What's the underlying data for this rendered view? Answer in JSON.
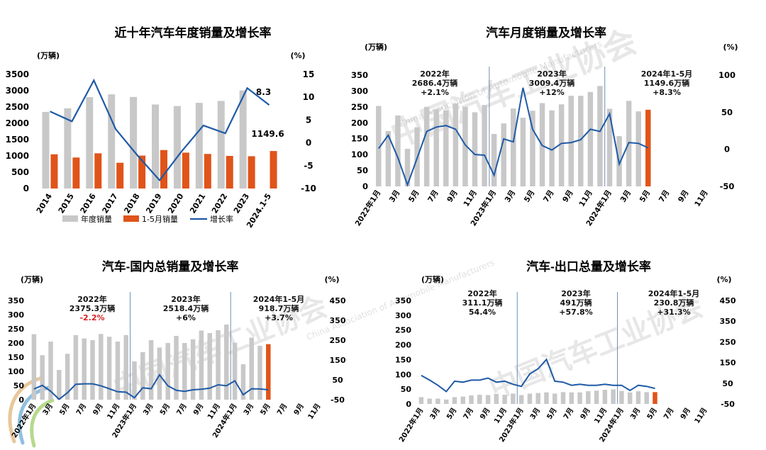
{
  "watermark": {
    "org_cn": "中国汽车工业协会",
    "org_en": "China Association of Automobile Manufacturers",
    "logo_text": "CAAM"
  },
  "colors": {
    "gray_bar": "#c8c8c8",
    "orange_bar": "#e0541a",
    "line": "#1f5aa6",
    "annot_red": "#d82020"
  },
  "chart_data": [
    {
      "id": "annual",
      "type": "bar",
      "title": "近十年汽车年度销量及增长率",
      "y_unit_left": "(万辆)",
      "y_unit_right": "(%)",
      "ylim_left": [
        0,
        3500
      ],
      "yticks_left": [
        "0",
        "500",
        "1000",
        "1500",
        "2000",
        "2500",
        "3000",
        "3500"
      ],
      "ylim_right": [
        -10,
        15
      ],
      "yticks_right": [
        "-10",
        "-5",
        "0",
        "5",
        "10",
        "15"
      ],
      "categories": [
        "2014",
        "2015",
        "2016",
        "2017",
        "2018",
        "2019",
        "2020",
        "2021",
        "2022",
        "2023",
        "2024.1-5"
      ],
      "series": [
        {
          "name": "年度销量",
          "kind": "bar",
          "axis": "left",
          "values": [
            2349,
            2460,
            2803,
            2888,
            2808,
            2577,
            2531,
            2628,
            2686,
            3009,
            null
          ]
        },
        {
          "name": "1-5月销量",
          "kind": "bar",
          "axis": "left",
          "values": [
            1050,
            950,
            1080,
            790,
            1010,
            1180,
            1100,
            1060,
            1000,
            990,
            1149.6
          ]
        },
        {
          "name": "增长率",
          "kind": "line",
          "axis": "right",
          "values": [
            6.9,
            4.7,
            13.7,
            3.0,
            -2.8,
            -8.2,
            -1.9,
            3.8,
            2.1,
            12,
            8.3
          ]
        }
      ],
      "data_labels": [
        {
          "text": "8.3"
        },
        {
          "text": "1149.6"
        }
      ],
      "legend": [
        "年度销量",
        "1-5月销量",
        "增长率"
      ],
      "legend_position": "bottom",
      "grid": false
    },
    {
      "id": "monthly",
      "type": "bar",
      "title": "汽车月度销量及增长率",
      "y_unit_left": "(万辆)",
      "y_unit_right": "(%)",
      "ylim_left": [
        0,
        350
      ],
      "yticks_left": [
        "0",
        "50",
        "100",
        "150",
        "200",
        "250",
        "300",
        "350"
      ],
      "ylim_right": [
        -50,
        100
      ],
      "yticks_right": [
        "-50",
        "0",
        "50",
        "100"
      ],
      "xticks": [
        "2022年1月",
        "3月",
        "5月",
        "7月",
        "9月",
        "11月",
        "2023年1月",
        "3月",
        "5月",
        "7月",
        "9月",
        "11月",
        "2024年1月",
        "3月",
        "5月",
        "7月",
        "9月",
        "11月"
      ],
      "slots": 35,
      "bars": [
        253,
        174,
        223,
        118,
        186,
        250,
        242,
        239,
        261,
        250,
        233,
        256,
        165,
        198,
        245,
        216,
        238,
        262,
        239,
        258,
        285,
        285,
        297,
        316,
        244,
        158,
        269,
        236,
        241
      ],
      "highlight_last": true,
      "growth": [
        1,
        19,
        -11,
        -48,
        -12,
        24,
        30,
        32,
        27,
        6,
        -7,
        -8,
        -35,
        14,
        10,
        83,
        27,
        5,
        -1,
        8,
        9,
        13,
        27,
        24,
        48,
        -20,
        9,
        8,
        2
      ],
      "dividers_at": [
        12,
        24
      ],
      "annotations": [
        {
          "lines": [
            "2022年",
            "2686.4万辆",
            "+2.1%"
          ],
          "colors": [
            "#111",
            "#111",
            "#111"
          ]
        },
        {
          "lines": [
            "2023年",
            "3009.4万辆",
            "+12%"
          ],
          "colors": [
            "#111",
            "#111",
            "#111"
          ]
        },
        {
          "lines": [
            "2024年1-5月",
            "1149.6万辆",
            "+8.3%"
          ],
          "colors": [
            "#111",
            "#111",
            "#111"
          ]
        }
      ],
      "grid": false
    },
    {
      "id": "domestic",
      "type": "bar",
      "title": "汽车-国内总销量及增长率",
      "y_unit_left": "(万辆)",
      "y_unit_right": "(%)",
      "ylim_left": [
        0,
        350
      ],
      "yticks_left": [
        "0",
        "50",
        "100",
        "150",
        "200",
        "250",
        "300",
        "350"
      ],
      "ylim_right": [
        -50,
        450
      ],
      "yticks_right": [
        "-50",
        "50",
        "150",
        "250",
        "350",
        "450"
      ],
      "xticks": [
        "2022年1月",
        "3月",
        "5月",
        "7月",
        "9月",
        "11月",
        "2023年1月",
        "3月",
        "5月",
        "7月",
        "9月",
        "11月",
        "2024年1月",
        "3月",
        "5月",
        "7月",
        "9月",
        "11月"
      ],
      "slots": 35,
      "bars": [
        231,
        157,
        205,
        105,
        162,
        228,
        216,
        210,
        232,
        222,
        205,
        228,
        135,
        168,
        210,
        184,
        200,
        225,
        200,
        213,
        244,
        235,
        245,
        265,
        201,
        125,
        219,
        190,
        196
      ],
      "highlight_last": true,
      "growth": [
        4,
        22,
        -8,
        -48,
        -15,
        28,
        30,
        30,
        20,
        5,
        -10,
        -12,
        -40,
        10,
        5,
        75,
        20,
        -3,
        -8,
        0,
        3,
        8,
        25,
        20,
        45,
        -25,
        5,
        4,
        0
      ],
      "dividers_at": [
        12,
        24
      ],
      "annotations": [
        {
          "lines": [
            "2022年",
            "2375.3万辆",
            "-2.2%"
          ],
          "colors": [
            "#111",
            "#111",
            "#d82020"
          ]
        },
        {
          "lines": [
            "2023年",
            "2518.4万辆",
            "+6%"
          ],
          "colors": [
            "#111",
            "#111",
            "#111"
          ]
        },
        {
          "lines": [
            "2024年1-5月",
            "918.7万辆",
            "+3.7%"
          ],
          "colors": [
            "#111",
            "#111",
            "#111"
          ]
        }
      ],
      "grid": false
    },
    {
      "id": "export",
      "type": "bar",
      "title": "汽车-出口总量及增长率",
      "y_unit_left": "(万辆)",
      "y_unit_right": "(%)",
      "ylim_left": [
        0,
        350
      ],
      "yticks_left": [
        "0",
        "50",
        "100",
        "150",
        "200",
        "250",
        "300",
        "350"
      ],
      "ylim_right": [
        -50,
        450
      ],
      "yticks_right": [
        "-50",
        "50",
        "150",
        "250",
        "350",
        "450"
      ],
      "xticks": [
        "2022年1月",
        "3月",
        "5月",
        "7月",
        "9月",
        "11月",
        "2023年1月",
        "3月",
        "5月",
        "7月",
        "9月",
        "11月",
        "2024年1月",
        "3月",
        "5月",
        "7月",
        "9月",
        "11月"
      ],
      "slots": 35,
      "bars": [
        23,
        18,
        18,
        15,
        23,
        25,
        29,
        31,
        30,
        34,
        31,
        35,
        30,
        35,
        37,
        39,
        35,
        40,
        39,
        39,
        43,
        45,
        48,
        49,
        44,
        39,
        43,
        40,
        40
      ],
      "highlight_last": true,
      "growth": [
        88,
        65,
        40,
        10,
        60,
        55,
        65,
        65,
        75,
        55,
        60,
        45,
        35,
        95,
        120,
        165,
        60,
        55,
        40,
        45,
        40,
        40,
        45,
        40,
        40,
        15,
        40,
        35,
        25
      ],
      "dividers_at": [
        12,
        24
      ],
      "annotations": [
        {
          "lines": [
            "2022年",
            "311.1万辆",
            "54.4%"
          ],
          "colors": [
            "#111",
            "#111",
            "#111"
          ]
        },
        {
          "lines": [
            "2023年",
            "491万辆",
            "+57.8%"
          ],
          "colors": [
            "#111",
            "#111",
            "#111"
          ]
        },
        {
          "lines": [
            "2024年1-5月",
            "230.8万辆",
            "+31.3%"
          ],
          "colors": [
            "#111",
            "#111",
            "#111"
          ]
        }
      ],
      "grid": false
    }
  ]
}
